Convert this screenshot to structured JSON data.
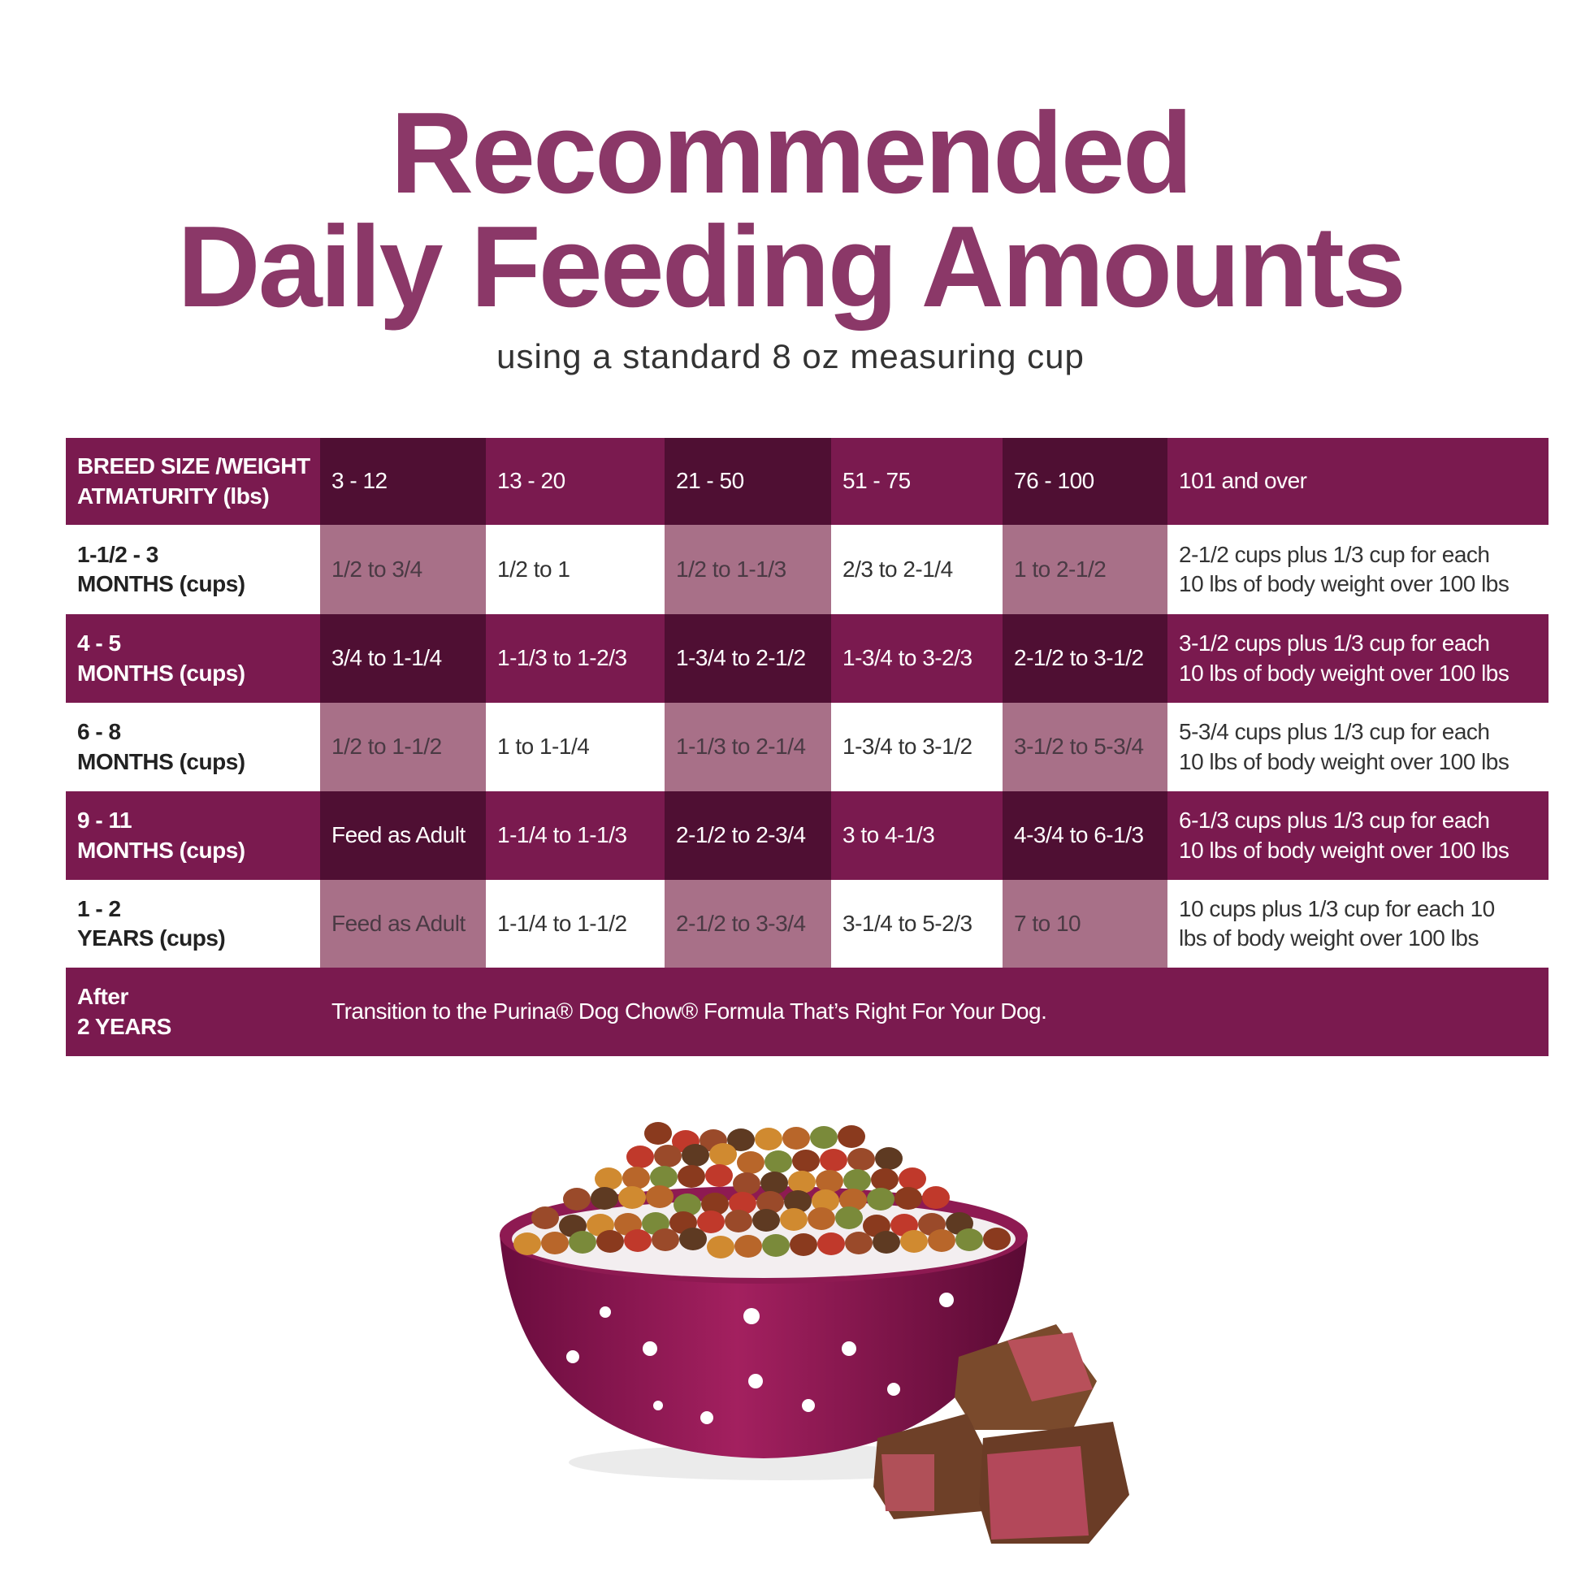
{
  "title": [
    "Recommended",
    "Daily Feeding Amounts"
  ],
  "subtitle": "using a standard 8 oz measuring cup",
  "table": {
    "header": {
      "label": [
        "BREED SIZE /WEIGHT",
        "ATMATURITY (lbs)"
      ],
      "columns": [
        "3 - 12",
        "13 - 20",
        "21 - 50",
        "51 - 75",
        "76 - 100",
        "101 and over"
      ]
    },
    "rows": [
      {
        "label": [
          "1-1/2 - 3",
          "MONTHS (cups)"
        ],
        "cells": [
          "1/2 to 3/4",
          "1/2 to 1",
          "1/2 to 1-1/3",
          "2/3 to 2-1/4",
          "1 to 2-1/2",
          [
            "2-1/2 cups plus 1/3 cup for each",
            "10 lbs of body weight over 100 lbs"
          ]
        ]
      },
      {
        "label": [
          "4 - 5",
          "MONTHS (cups)"
        ],
        "cells": [
          "3/4 to 1-1/4",
          "1-1/3 to 1-2/3",
          "1-3/4 to 2-1/2",
          "1-3/4 to 3-2/3",
          "2-1/2 to 3-1/2",
          [
            "3-1/2 cups plus 1/3 cup for each",
            "10 lbs of body weight over 100 lbs"
          ]
        ]
      },
      {
        "label": [
          "6 - 8",
          "MONTHS (cups)"
        ],
        "cells": [
          "1/2 to 1-1/2",
          "1 to 1-1/4",
          "1-1/3 to 2-1/4",
          "1-3/4 to 3-1/2",
          "3-1/2 to 5-3/4",
          [
            "5-3/4 cups plus 1/3 cup for each",
            "10 lbs of body weight over 100 lbs"
          ]
        ]
      },
      {
        "label": [
          "9 - 11",
          "MONTHS (cups)"
        ],
        "cells": [
          "Feed as Adult",
          "1-1/4 to 1-1/3",
          "2-1/2 to 2-3/4",
          "3 to 4-1/3",
          "4-3/4 to 6-1/3",
          [
            "6-1/3 cups plus 1/3 cup for each",
            "10 lbs of body weight over 100 lbs"
          ]
        ]
      },
      {
        "label": [
          "1 - 2",
          "YEARS (cups)"
        ],
        "cells": [
          "Feed as Adult",
          "1-1/4 to 1-1/2",
          "2-1/2 to 3-3/4",
          "3-1/4 to 5-2/3",
          "7 to 10",
          [
            "10 cups plus 1/3 cup for each 10",
            "lbs of body weight over 100 lbs"
          ]
        ]
      }
    ],
    "footer": {
      "label": [
        "After",
        "2 YEARS"
      ],
      "text": "Transition to the Purina® Dog Chow® Formula That’s Right For Your Dog."
    }
  }
}
